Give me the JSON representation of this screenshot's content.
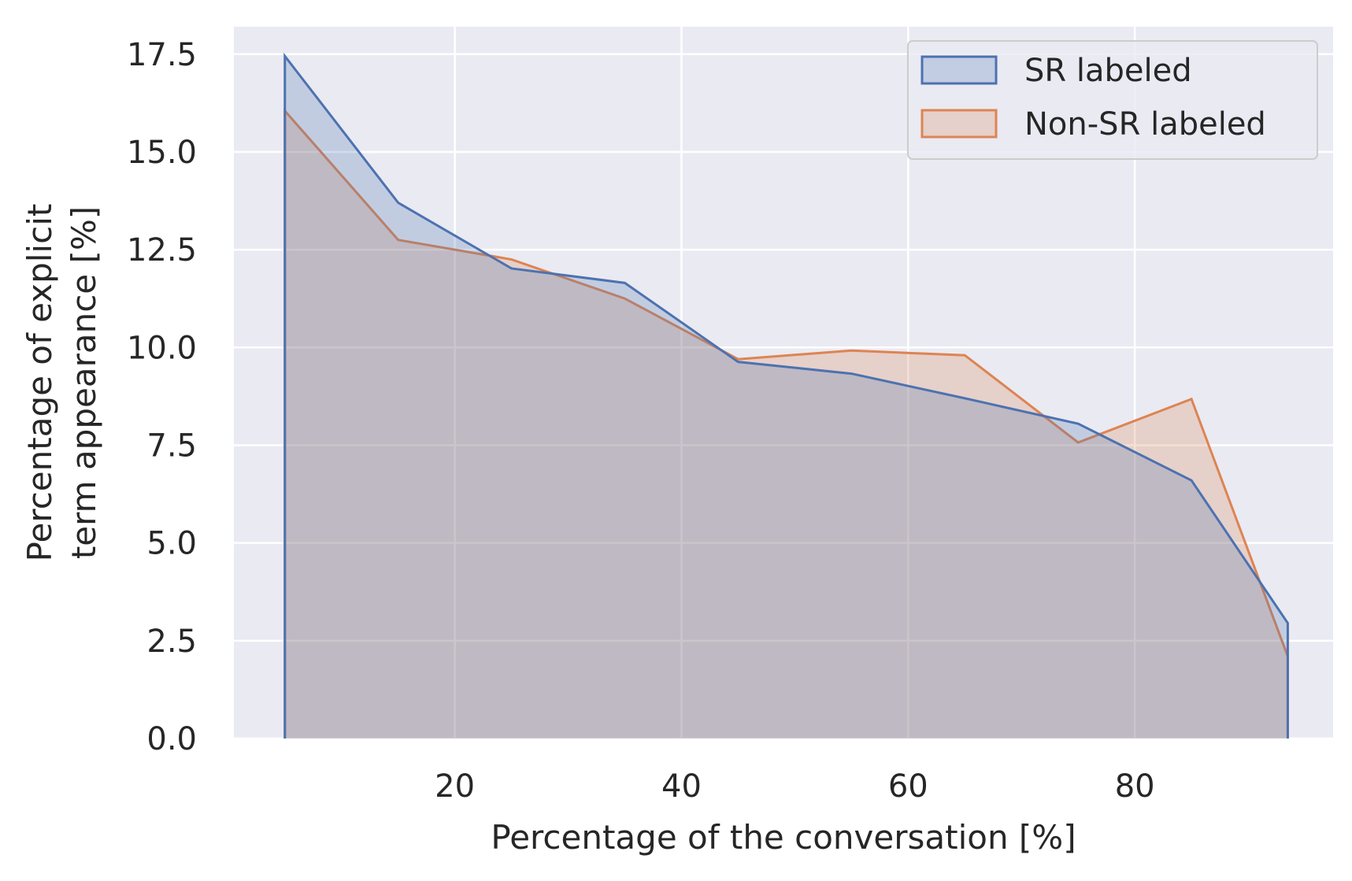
{
  "chart_data": {
    "type": "area",
    "title": "",
    "xlabel": "Percentage of the conversation [%]",
    "ylabel_lines": [
      "Percentage of explicit",
      "term appearance [%]"
    ],
    "xlim": [
      0.5,
      97.5
    ],
    "ylim": [
      0,
      18.2
    ],
    "x_ticks": [
      20,
      40,
      60,
      80
    ],
    "y_ticks": [
      0.0,
      2.5,
      5.0,
      7.5,
      10.0,
      12.5,
      15.0,
      17.5
    ],
    "y_tick_labels": [
      "0.0",
      "2.5",
      "5.0",
      "7.5",
      "10.0",
      "12.5",
      "15.0",
      "17.5"
    ],
    "grid": true,
    "background": "#eaeaf2",
    "legend_position": "top-right",
    "x": [
      5,
      15,
      25,
      35,
      45,
      55,
      65,
      75,
      85,
      93.5
    ],
    "series": [
      {
        "name": "Non-SR labeled",
        "color": "#dd8452",
        "fill_opacity": 0.25,
        "values": [
          16.05,
          12.75,
          12.25,
          11.25,
          9.7,
          9.92,
          9.8,
          7.57,
          8.68,
          2.1
        ]
      },
      {
        "name": "SR labeled",
        "color": "#4c72b0",
        "fill_opacity": 0.25,
        "values": [
          17.45,
          13.7,
          12.02,
          11.65,
          9.63,
          9.33,
          8.7,
          8.05,
          6.6,
          2.95
        ]
      }
    ]
  }
}
